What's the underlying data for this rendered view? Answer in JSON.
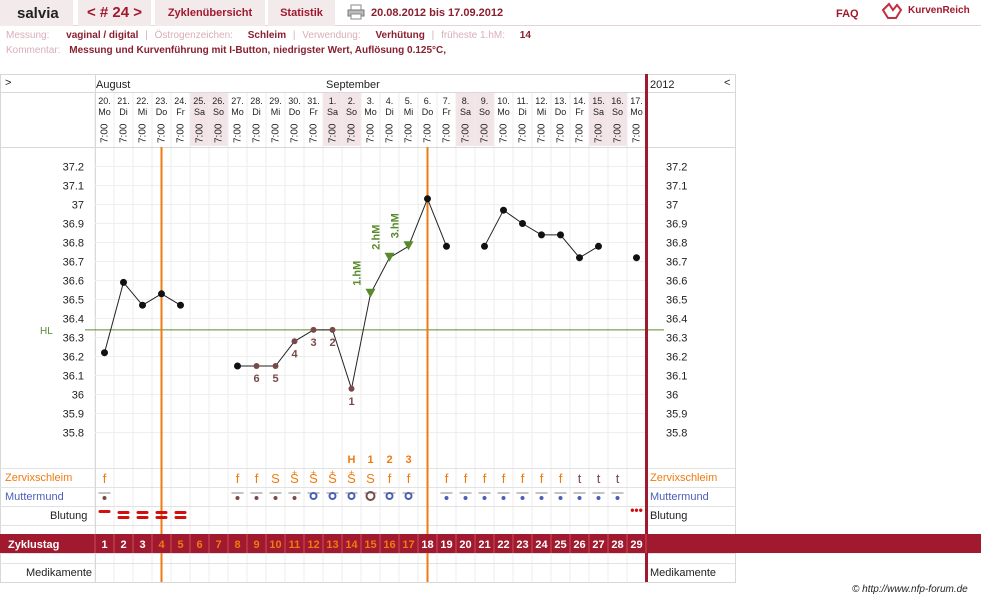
{
  "header": {
    "user": "salvia",
    "cycle_nav": "< # 24 >",
    "tabs": [
      "Zyklenübersicht",
      "Statistik"
    ],
    "date_range": "20.08.2012 bis 17.09.2012",
    "faq": "FAQ",
    "logo": "KurvenReich"
  },
  "info": {
    "messung_label": "Messung:",
    "messung_value": "vaginal / digital",
    "oestrogen_label": "Östrogenzeichen:",
    "oestrogen_value": "Schleim",
    "verwendung_label": "Verwendung:",
    "verwendung_value": "Verhütung",
    "fruehest_label": "früheste 1.hM:",
    "fruehest_value": "14",
    "kommentar_label": "Kommentar:",
    "kommentar_value": "Messung und Kurvenführung mit I-Button, niedrigster Wert, Auflösung 0.125°C,"
  },
  "chart": {
    "left_arrow": ">",
    "right_arrow": "<",
    "year": "2012",
    "months": [
      {
        "label": "August",
        "start_day": 1
      },
      {
        "label": "September",
        "start_day": 13
      }
    ],
    "hl_label": "HL",
    "hl_value": 36.34,
    "copyright": "© http://www.nfp-forum.de",
    "colors": {
      "accent": "#a0192e",
      "orange": "#f07a10",
      "line": "#222222",
      "hl": "#5a8a2e",
      "count": "#7a4a4a",
      "mm": "#4a5fb5"
    }
  },
  "chart_data": {
    "type": "line",
    "title": "",
    "xlabel": "Zyklustag",
    "ylabel": "",
    "ylim": [
      35.75,
      37.25
    ],
    "y_ticks": [
      "37.2",
      "37.1",
      "37",
      "36.9",
      "36.8",
      "36.7",
      "36.6",
      "36.5",
      "36.4",
      "36.3",
      "36.2",
      "36.1",
      "36",
      "35.9",
      "35.8"
    ],
    "x": [
      1,
      2,
      3,
      4,
      5,
      6,
      7,
      8,
      9,
      10,
      11,
      12,
      13,
      14,
      15,
      16,
      17,
      18,
      19,
      20,
      21,
      22,
      23,
      24,
      25,
      26,
      27,
      28,
      29
    ],
    "dates": [
      "20.",
      "21.",
      "22.",
      "23.",
      "24.",
      "25.",
      "26.",
      "27.",
      "28.",
      "29.",
      "30.",
      "31.",
      "1.",
      "2.",
      "3.",
      "4.",
      "5.",
      "6.",
      "7.",
      "8.",
      "9.",
      "10.",
      "11.",
      "12.",
      "13.",
      "14.",
      "15.",
      "16.",
      "17."
    ],
    "weekdays": [
      "Mo",
      "Di",
      "Mi",
      "Do",
      "Fr",
      "Sa",
      "So",
      "Mo",
      "Di",
      "Mi",
      "Do",
      "Fr",
      "Sa",
      "So",
      "Mo",
      "Di",
      "Mi",
      "Do",
      "Fr",
      "Sa",
      "So",
      "Mo",
      "Di",
      "Mi",
      "Do",
      "Fr",
      "Sa",
      "So",
      "Mo"
    ],
    "times": [
      "7:00",
      "7:00",
      "7:00",
      "7:00",
      "7:00",
      "7:00",
      "7:00",
      "7:00",
      "7:00",
      "7:00",
      "7:00",
      "7:00",
      "7:00",
      "7:00",
      "7:00",
      "7:00",
      "7:00",
      "7:00",
      "7:00",
      "7:00",
      "7:00",
      "7:00",
      "7:00",
      "7:00",
      "7:00",
      "7:00",
      "7:00",
      "7:00",
      "7:00"
    ],
    "weekend_days": [
      6,
      7,
      13,
      14,
      20,
      21,
      27,
      28
    ],
    "series": [
      {
        "values": [
          36.22,
          36.59,
          36.47,
          36.53,
          36.47,
          null,
          null,
          36.15,
          36.15,
          36.15,
          36.28,
          36.34,
          36.34,
          36.03,
          36.53,
          36.72,
          36.78,
          37.03,
          36.78,
          null,
          36.78,
          36.97,
          36.9,
          36.84,
          36.84,
          36.72,
          36.78,
          null,
          36.72
        ]
      }
    ],
    "low_counts": [
      {
        "day": 14,
        "label": "1"
      },
      {
        "day": 13,
        "label": "2"
      },
      {
        "day": 12,
        "label": "3"
      },
      {
        "day": 11,
        "label": "4"
      },
      {
        "day": 10,
        "label": "5"
      },
      {
        "day": 9,
        "label": "6"
      }
    ],
    "high_markers": [
      {
        "day": 15,
        "label": "1.hM"
      },
      {
        "day": 16,
        "label": "2.hM"
      },
      {
        "day": 17,
        "label": "3.hM"
      }
    ],
    "vertical_lines": [
      3.5,
      17.5
    ],
    "zervix": {
      "label": "Zervixschleim",
      "top_marks": [
        {
          "day": 14,
          "label": "H"
        },
        {
          "day": 15,
          "label": "1"
        },
        {
          "day": 16,
          "label": "2"
        },
        {
          "day": 17,
          "label": "3"
        }
      ],
      "values": [
        "f",
        null,
        null,
        null,
        null,
        null,
        null,
        "f",
        "f",
        "S",
        "S",
        "S",
        "S",
        "S",
        "S",
        "f",
        "f",
        null,
        "f",
        "f",
        "f",
        "f",
        "f",
        "f",
        "f",
        "t",
        "t",
        "t",
        null
      ],
      "plus_days": [
        11,
        12,
        13,
        14
      ]
    },
    "muttermund": {
      "label": "Muttermund",
      "values": [
        "·",
        null,
        null,
        null,
        null,
        null,
        null,
        "·",
        "·",
        "·",
        "·",
        "o",
        "o",
        "o",
        "O",
        "o",
        "o",
        null,
        "·",
        "·",
        "·",
        "·",
        "·",
        "·",
        "·",
        "·",
        "·",
        "·",
        null
      ]
    },
    "blutung": {
      "label": "Blutung",
      "values": [
        "heavy",
        "heavy",
        "heavy",
        "heavy",
        "heavy",
        null,
        null,
        null,
        null,
        null,
        null,
        null,
        null,
        null,
        null,
        null,
        null,
        null,
        null,
        null,
        null,
        null,
        null,
        null,
        null,
        null,
        null,
        null,
        "spot"
      ]
    },
    "zyklustag_label": "Zyklustag",
    "medikamente_label": "Medikamente"
  }
}
